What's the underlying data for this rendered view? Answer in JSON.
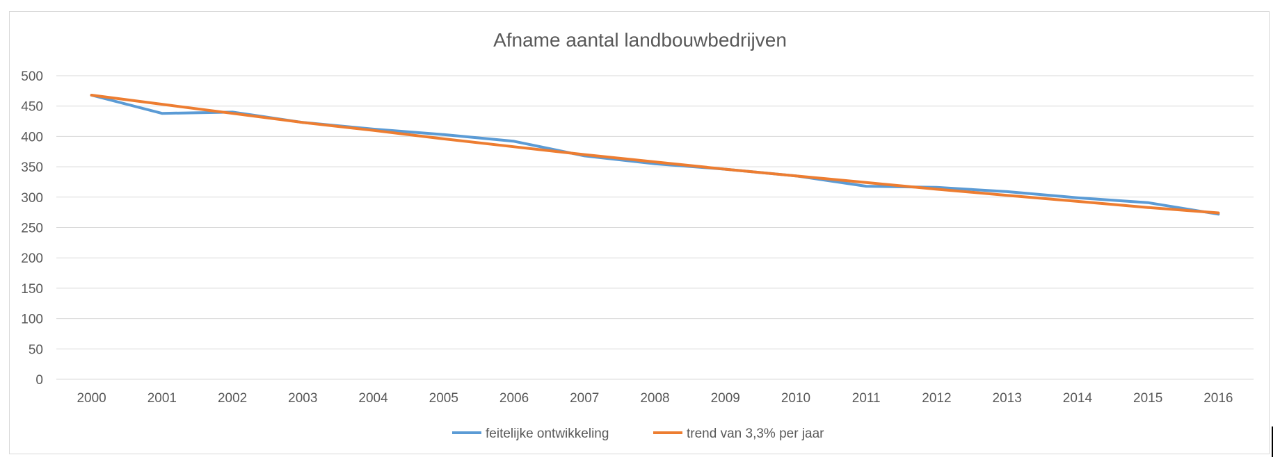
{
  "chart_data": {
    "type": "line",
    "title": "Afname  aantal landbouwbedrijven",
    "xlabel": "",
    "ylabel": "",
    "categories": [
      "2000",
      "2001",
      "2002",
      "2003",
      "2004",
      "2005",
      "2006",
      "2007",
      "2008",
      "2009",
      "2010",
      "2011",
      "2012",
      "2013",
      "2014",
      "2015",
      "2016"
    ],
    "ylim": [
      0,
      500
    ],
    "yticks": [
      "0",
      "50",
      "100",
      "150",
      "200",
      "250",
      "300",
      "350",
      "400",
      "450",
      "500"
    ],
    "grid": true,
    "legend_position": "bottom",
    "series": [
      {
        "name": "feitelijke ontwikkeling",
        "color": "#5b9bd5",
        "values": [
          468,
          438,
          440,
          423,
          412,
          403,
          392,
          368,
          355,
          346,
          335,
          318,
          316,
          309,
          299,
          291,
          272
        ]
      },
      {
        "name": "trend van 3,3% per jaar",
        "color": "#ed7d31",
        "values": [
          468,
          453,
          438,
          423,
          410,
          396,
          383,
          370,
          358,
          346,
          335,
          324,
          313,
          303,
          293,
          283,
          274
        ]
      }
    ]
  }
}
